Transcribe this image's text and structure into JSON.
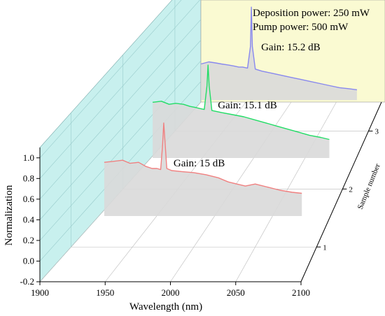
{
  "colors": {
    "background_wall": "#c8f0ee",
    "top_wall": "#fafad2",
    "floor_fill": "#d9d9d9",
    "axis": "#000000",
    "grid": "#bbbbbb"
  },
  "chart_data": {
    "type": "line",
    "style": "3d-waterfall",
    "xlabel": "Wavelength (nm)",
    "ylabel": "Normalization",
    "zlabel": "Sample number",
    "xlim": [
      1900,
      2100
    ],
    "ylim": [
      -0.2,
      1.1
    ],
    "x_ticks": [
      "1900",
      "1950",
      "2000",
      "2050",
      "2100"
    ],
    "y_ticks": [
      "-0.2",
      "0.0",
      "0.2",
      "0.4",
      "0.6",
      "0.8",
      "1.0"
    ],
    "z_ticks": [
      "1",
      "2",
      "3"
    ],
    "grid": true,
    "annotations": {
      "box": [
        "Deposition power: 250 mW",
        "Pump power: 500 mW"
      ]
    },
    "series": [
      {
        "sample": 1,
        "color": "#f08080",
        "gain_label": "Gain: 15 dB",
        "x": [
          1927,
          1935,
          1942,
          1948,
          1955,
          1961,
          1966,
          1970,
          1973,
          1974.5,
          1975.5,
          1976.5,
          1978,
          1982,
          1990,
          2000,
          2010,
          2020,
          2028,
          2035,
          2042,
          2050,
          2060,
          2070,
          2080,
          2088
        ],
        "y": [
          0.62,
          0.63,
          0.64,
          0.61,
          0.62,
          0.58,
          0.56,
          0.56,
          0.55,
          0.78,
          1.0,
          0.82,
          0.56,
          0.54,
          0.53,
          0.52,
          0.5,
          0.47,
          0.43,
          0.41,
          0.39,
          0.41,
          0.38,
          0.35,
          0.33,
          0.32
        ]
      },
      {
        "sample": 2,
        "color": "#22dd66",
        "gain_label": "Gain: 15.1 dB",
        "x": [
          1927,
          1935,
          1942,
          1948,
          1955,
          1961,
          1966,
          1970,
          1974,
          1976.5,
          1977.5,
          1978.5,
          1981,
          1990,
          2000,
          2010,
          2020,
          2030,
          2040,
          2050,
          2060,
          2070,
          2080,
          2088
        ],
        "y": [
          0.64,
          0.65,
          0.62,
          0.63,
          0.62,
          0.6,
          0.59,
          0.58,
          0.57,
          0.8,
          1.0,
          0.8,
          0.56,
          0.54,
          0.52,
          0.5,
          0.47,
          0.44,
          0.41,
          0.38,
          0.35,
          0.32,
          0.3,
          0.28
        ]
      },
      {
        "sample": 3,
        "color": "#8888ee",
        "gain_label": "Gain: 15.2 dB",
        "x": [
          1927,
          1935,
          1942,
          1948,
          1955,
          1961,
          1966,
          1970,
          1975,
          1978,
          1979,
          1980,
          1983,
          1990,
          2000,
          2010,
          2020,
          2030,
          2040,
          2050,
          2060,
          2070,
          2080,
          2088
        ],
        "y": [
          0.45,
          0.47,
          0.46,
          0.45,
          0.44,
          0.43,
          0.42,
          0.42,
          0.41,
          0.62,
          1.0,
          0.62,
          0.4,
          0.38,
          0.36,
          0.34,
          0.32,
          0.3,
          0.28,
          0.26,
          0.24,
          0.22,
          0.21,
          0.2
        ]
      }
    ]
  }
}
